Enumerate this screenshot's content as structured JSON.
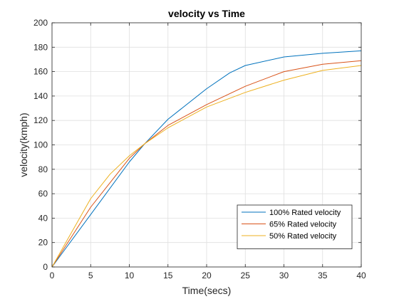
{
  "chart_data": {
    "type": "line",
    "title": "velocity vs Time",
    "xlabel": "Time(secs)",
    "ylabel": "velocity(kmph)",
    "xlim": [
      0,
      40
    ],
    "ylim": [
      0,
      200
    ],
    "xticks": [
      0,
      5,
      10,
      15,
      20,
      25,
      30,
      35,
      40
    ],
    "yticks": [
      0,
      20,
      40,
      60,
      80,
      100,
      120,
      140,
      160,
      180,
      200
    ],
    "grid": true,
    "legend_position": "lower-right",
    "series": [
      {
        "name": "100% Rated velocity",
        "color": "#0072BD",
        "x": [
          0,
          5,
          10,
          12,
          15,
          20,
          23,
          25,
          30,
          35,
          40
        ],
        "y": [
          0,
          43,
          86,
          101,
          121,
          146,
          159,
          165,
          172,
          175,
          177
        ]
      },
      {
        "name": "65% Rated velocity",
        "color": "#D95319",
        "x": [
          0,
          5,
          10,
          12,
          15,
          20,
          25,
          30,
          35,
          40
        ],
        "y": [
          0,
          49,
          89,
          101,
          116,
          133,
          148,
          160,
          166,
          169
        ]
      },
      {
        "name": "50% Rated velocity",
        "color": "#EDB120",
        "x": [
          0,
          2.5,
          5,
          7.5,
          10,
          12,
          15,
          20,
          25,
          30,
          35,
          40
        ],
        "y": [
          0,
          28,
          56,
          76,
          91,
          101,
          114,
          131,
          143,
          153,
          161,
          165
        ]
      }
    ]
  }
}
